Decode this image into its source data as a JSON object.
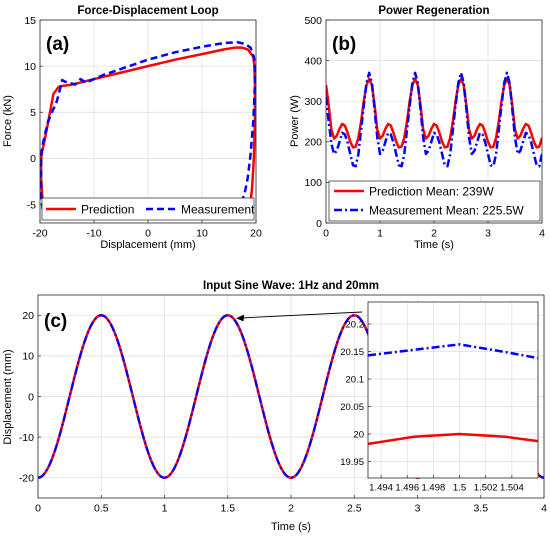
{
  "chart_data": [
    {
      "panel_label": "(a)",
      "type": "line",
      "title": "Force-Displacement Loop",
      "xlabel": "Displacement (mm)",
      "ylabel": "Force (kN)",
      "xlim": [
        -20,
        20
      ],
      "ylim": [
        -7,
        15
      ],
      "xticks": [
        -20,
        -10,
        0,
        10,
        20
      ],
      "yticks": [
        -5,
        0,
        5,
        10,
        15
      ],
      "grid": true,
      "legend": "bottom",
      "legend_layout": "horizontal",
      "series": [
        {
          "name": "Prediction",
          "color": "#ff0000",
          "style": "solid",
          "x": [
            -16.5,
            -14,
            -10,
            -5,
            0,
            5,
            10,
            14,
            16,
            17.5,
            18.5,
            19.5,
            19.7,
            19.8,
            19.8,
            19.6,
            19.3,
            19,
            18.8,
            17.2,
            16.2,
            15.8,
            14,
            10,
            5,
            0,
            -5,
            -10,
            -14,
            -16,
            -17.5,
            -18.5,
            -19.2,
            -19.6,
            -19.8,
            -19.8,
            -19.6,
            -19.3,
            -18.8,
            -17.5,
            -16.5
          ],
          "y": [
            7.8,
            8.0,
            8.6,
            9.3,
            10.0,
            10.7,
            11.3,
            11.8,
            12.0,
            12.0,
            11.8,
            11.0,
            10.0,
            8.0,
            4.0,
            0,
            -3,
            -4.8,
            -5.5,
            -5.6,
            -5.6,
            -5.6,
            -5.6,
            -5.7,
            -5.8,
            -5.9,
            -6.0,
            -6.1,
            -6.2,
            -6.2,
            -6.1,
            -5.9,
            -5.2,
            -4.0,
            -2.0,
            0,
            0.8,
            1.5,
            3.0,
            7.0,
            7.8
          ]
        },
        {
          "name": "Measurement",
          "color": "#0000ff",
          "style": "dashed",
          "x": [
            -19.8,
            -19.5,
            -19,
            -18.5,
            -17.8,
            -17.0,
            -16.5,
            -15.9,
            -15.3,
            -14.5,
            -13.5,
            -12.5,
            -11.5,
            -10,
            -8,
            -5,
            0,
            5,
            10,
            14,
            16.5,
            18,
            19,
            19.6,
            19.8,
            19.8,
            19.5,
            19,
            18.5,
            18.0,
            17.5,
            17.0,
            16.4,
            15.8,
            15.2,
            14.5,
            13.5,
            12.5,
            11.5,
            10.5,
            9.5,
            8.5,
            7.5,
            5,
            0,
            -5,
            -10,
            -15,
            -17,
            -18.5,
            -19.5,
            -19.8,
            -19.8
          ],
          "y": [
            0.3,
            1.5,
            2.8,
            4.0,
            5.0,
            6.0,
            7.0,
            8.5,
            8.3,
            8.2,
            8.0,
            8.6,
            8.2,
            8.6,
            9.1,
            9.7,
            10.7,
            11.5,
            12.1,
            12.5,
            12.6,
            12.4,
            12.0,
            11.0,
            10.0,
            8.0,
            4.0,
            0.5,
            -2.0,
            -3.5,
            -4.5,
            -5.2,
            -5.7,
            -5.9,
            -6.2,
            -5.8,
            -6.0,
            -5.6,
            -6.1,
            -5.7,
            -6.0,
            -5.7,
            -6.0,
            -6.2,
            -6.3,
            -6.3,
            -6.3,
            -6.2,
            -6.0,
            -5.8,
            -5.5,
            -4.0,
            0.3
          ]
        }
      ]
    },
    {
      "panel_label": "(b)",
      "type": "line",
      "title": "Power Regeneration",
      "xlabel": "Time (s)",
      "ylabel": "Power (W)",
      "xlim": [
        0,
        4
      ],
      "ylim": [
        0,
        500
      ],
      "xticks": [
        0,
        1,
        2,
        3,
        4
      ],
      "yticks": [
        0,
        100,
        200,
        300,
        400,
        500
      ],
      "grid": true,
      "legend": "bottom-left",
      "series": [
        {
          "name": "Prediction Mean: 239W",
          "color": "#ff0000",
          "style": "solid",
          "x": [
            0,
            0.05,
            0.1,
            0.15,
            0.2,
            0.25,
            0.3,
            0.35,
            0.4,
            0.45,
            0.5,
            0.55,
            0.6,
            0.65,
            0.7,
            0.75,
            0.8,
            0.85,
            0.9,
            0.95,
            1.0,
            1.05,
            1.1,
            1.15,
            1.2,
            1.25,
            1.3,
            1.35,
            1.4,
            1.45,
            1.5,
            1.55,
            1.6,
            1.65,
            1.7,
            1.75,
            1.8,
            1.85,
            1.9,
            1.95,
            2.0,
            2.05,
            2.1,
            2.15,
            2.2,
            2.25,
            2.3,
            2.35,
            2.4,
            2.45,
            2.5,
            2.55,
            2.6,
            2.65,
            2.7,
            2.75,
            2.8,
            2.85,
            2.9,
            2.95,
            3.0,
            3.05,
            3.1,
            3.15,
            3.2,
            3.25,
            3.3,
            3.35,
            3.4,
            3.45,
            3.5,
            3.55,
            3.6,
            3.65,
            3.7,
            3.75,
            3.8,
            3.85,
            3.9,
            3.95,
            4.0
          ],
          "y": [
            340,
            290,
            230,
            208,
            215,
            232,
            244,
            240,
            222,
            200,
            186,
            188,
            210,
            250,
            300,
            340,
            355,
            340,
            290,
            230,
            208,
            215,
            232,
            244,
            240,
            222,
            200,
            186,
            188,
            210,
            250,
            300,
            340,
            355,
            340,
            290,
            230,
            208,
            215,
            232,
            244,
            240,
            222,
            200,
            186,
            188,
            210,
            250,
            300,
            340,
            355,
            340,
            290,
            230,
            208,
            215,
            232,
            244,
            240,
            222,
            200,
            186,
            188,
            210,
            250,
            300,
            340,
            355,
            340,
            290,
            230,
            208,
            215,
            232,
            244,
            240,
            222,
            200,
            186,
            188,
            210
          ]
        },
        {
          "name": "Measurement Mean: 225.5W",
          "color": "#0000ff",
          "style": "dash-dot",
          "x": [
            0,
            0.05,
            0.1,
            0.15,
            0.2,
            0.25,
            0.3,
            0.35,
            0.4,
            0.45,
            0.5,
            0.55,
            0.6,
            0.65,
            0.7,
            0.75,
            0.8,
            0.85,
            0.9,
            0.95,
            1.0,
            1.05,
            1.1,
            1.15,
            1.2,
            1.25,
            1.3,
            1.35,
            1.4,
            1.45,
            1.5,
            1.55,
            1.6,
            1.65,
            1.7,
            1.75,
            1.8,
            1.85,
            1.9,
            1.95,
            2.0,
            2.05,
            2.1,
            2.15,
            2.2,
            2.25,
            2.3,
            2.35,
            2.4,
            2.45,
            2.5,
            2.55,
            2.6,
            2.65,
            2.7,
            2.75,
            2.8,
            2.85,
            2.9,
            2.95,
            3.0,
            3.05,
            3.1,
            3.15,
            3.2,
            3.25,
            3.3,
            3.35,
            3.4,
            3.45,
            3.5,
            3.55,
            3.6,
            3.65,
            3.7,
            3.75,
            3.8,
            3.85,
            3.9,
            3.95,
            4.0
          ],
          "y": [
            310,
            250,
            195,
            170,
            178,
            200,
            222,
            218,
            198,
            170,
            142,
            140,
            170,
            230,
            290,
            345,
            370,
            345,
            280,
            210,
            170,
            178,
            200,
            222,
            218,
            198,
            170,
            142,
            140,
            170,
            230,
            290,
            345,
            370,
            345,
            280,
            210,
            170,
            178,
            200,
            222,
            218,
            198,
            170,
            142,
            140,
            170,
            230,
            290,
            345,
            370,
            345,
            280,
            210,
            170,
            178,
            200,
            222,
            218,
            198,
            170,
            142,
            140,
            170,
            230,
            290,
            345,
            370,
            345,
            280,
            210,
            170,
            178,
            200,
            222,
            218,
            198,
            170,
            142,
            140,
            170
          ]
        }
      ]
    },
    {
      "panel_label": "(c)",
      "type": "line",
      "title": "Input Sine Wave: 1Hz and 20mm",
      "xlabel": "Time (s)",
      "ylabel": "Displacement (mm)",
      "xlim": [
        0,
        4
      ],
      "ylim": [
        -25,
        25
      ],
      "xticks": [
        "0",
        "0.5",
        "1",
        "1.5",
        "2",
        "2.5",
        "3",
        "3.5",
        "4"
      ],
      "yticks": [
        -20,
        -10,
        0,
        10,
        20
      ],
      "grid": true,
      "series": [
        {
          "name": "Prediction",
          "color": "#ff0000",
          "style": "solid",
          "function": "-20*cos(2*pi*t)"
        },
        {
          "name": "Measurement",
          "color": "#0000ff",
          "style": "dash-dot",
          "function": "-20*cos(2*pi*t)"
        }
      ],
      "inset": {
        "xlim": [
          1.493,
          1.506
        ],
        "ylim": [
          19.92,
          20.24
        ],
        "xticks": [
          "1.494",
          "1.496",
          "1.498",
          "1.5",
          "1.502",
          "1.504"
        ],
        "yticks": [
          "19.95",
          "20",
          "20.05",
          "20.1",
          "20.15",
          "20.2"
        ],
        "series": [
          {
            "name": "Prediction",
            "color": "#ff0000",
            "x": [
              1.493,
              1.4965,
              1.5,
              1.5035,
              1.506
            ],
            "y": [
              19.982,
              19.995,
              20.0,
              19.995,
              19.987
            ]
          },
          {
            "name": "Measurement",
            "color": "#0000ff",
            "x": [
              1.493,
              1.4965,
              1.5,
              1.5035,
              1.506
            ],
            "y": [
              20.143,
              20.153,
              20.163,
              20.149,
              20.138
            ]
          }
        ]
      }
    }
  ]
}
